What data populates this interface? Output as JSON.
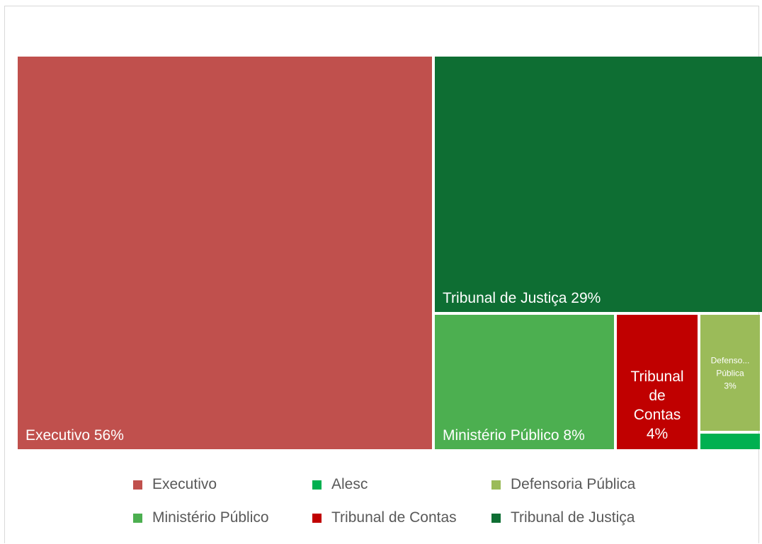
{
  "chart_data": {
    "type": "treemap",
    "title": "",
    "series": [
      {
        "name": "Executivo",
        "value": 56,
        "label": "Executivo 56%",
        "color": "#c0504d"
      },
      {
        "name": "Tribunal de Justiça",
        "value": 29,
        "label": "Tribunal de Justiça 29%",
        "color": "#0e6e33"
      },
      {
        "name": "Ministério Público",
        "value": 8,
        "label": "Ministério Público 8%",
        "color": "#4caf50"
      },
      {
        "name": "Tribunal de Contas",
        "value": 4,
        "label_lines": [
          "Tribunal",
          "de",
          "Contas",
          "4%"
        ],
        "color": "#c00000"
      },
      {
        "name": "Defensoria Pública",
        "value": 3,
        "label_lines": [
          "Defenso...",
          "Pública",
          "3%"
        ],
        "color": "#9bbb59"
      },
      {
        "name": "Alesc",
        "value": 0.5,
        "label": "",
        "color": "#00b050"
      }
    ],
    "legend": {
      "placement": "bottom",
      "items": [
        {
          "label": "Executivo",
          "color": "#c0504d"
        },
        {
          "label": "Alesc",
          "color": "#00b050"
        },
        {
          "label": "Defensoria Pública",
          "color": "#9bbb59"
        },
        {
          "label": "Ministério Público",
          "color": "#4caf50"
        },
        {
          "label": "Tribunal de Contas",
          "color": "#c00000"
        },
        {
          "label": "Tribunal de Justiça",
          "color": "#0e6e33"
        }
      ]
    }
  }
}
